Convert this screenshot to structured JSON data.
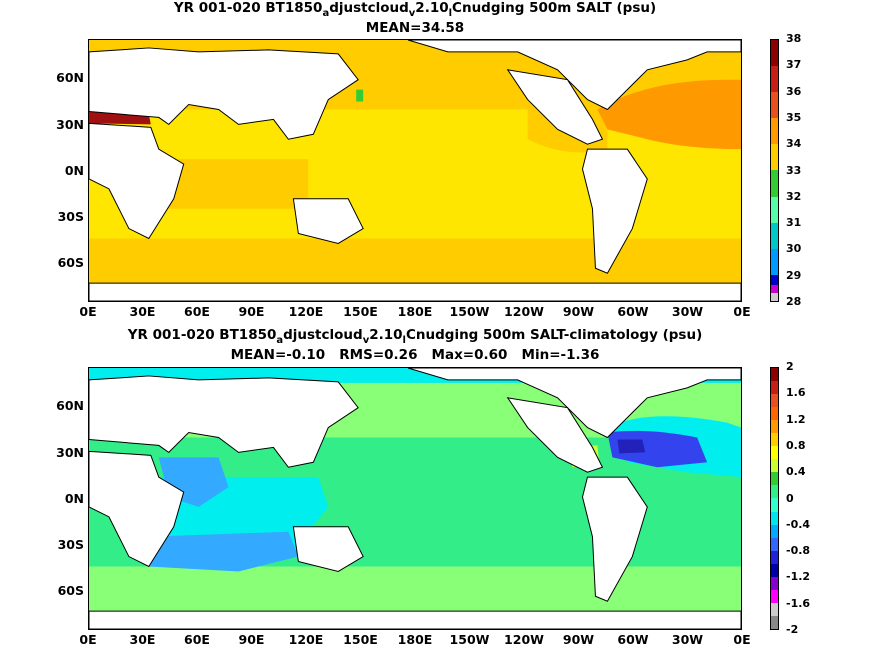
{
  "panels": [
    {
      "title_parts": [
        "YR 001-020 BT1850",
        "a",
        "djustcloud",
        "v",
        "2.10",
        "l",
        "Cnudging 500m SALT (psu)"
      ],
      "subtitle": "MEAN=34.58",
      "colorbar_labels": [
        "38",
        "37",
        "36",
        "35",
        "34",
        "33",
        "32",
        "31",
        "30",
        "29",
        "28"
      ],
      "colorbar_colors": [
        "#8b0000",
        "#c81e14",
        "#e8501e",
        "#ff9900",
        "#ffcc00",
        "#33cc33",
        "#55ffaa",
        "#00c8c8",
        "#0099ff",
        "#0000cc",
        "#cc00cc"
      ],
      "ocean_color": "#ffe600",
      "regions": [
        {
          "name": "atlantic-high",
          "color": "#ff9900"
        },
        {
          "name": "southern-ocean",
          "color": "#ffcc00"
        },
        {
          "name": "mediterranean",
          "color": "#a01010"
        }
      ]
    },
    {
      "title_parts": [
        "YR 001-020 BT1850",
        "a",
        "djustcloud",
        "v",
        "2.10",
        "l",
        "Cnudging 500m SALT-climatology (psu)"
      ],
      "subtitle": "MEAN=-0.10   RMS=0.26   Max=0.60   Min=-1.36",
      "colorbar_labels": [
        "2",
        "1.6",
        "1.2",
        "0.8",
        "0.4",
        "0",
        "-0.4",
        "-0.8",
        "-1.2",
        "-1.6",
        "-2"
      ],
      "colorbar_colors": [
        "#8b0000",
        "#c81e14",
        "#e8501e",
        "#ff9900",
        "#ffcc00",
        "#33cc33",
        "#33ffaa",
        "#00e5ee",
        "#0099ff",
        "#3355ff",
        "#0000cc",
        "#8800cc",
        "#ff00ff",
        "#cccccc"
      ],
      "ocean_color": "#33ee88",
      "regions": [
        {
          "name": "north-atlantic-fresh",
          "color": "#3344ee"
        },
        {
          "name": "indian-fresh",
          "color": "#33aaff"
        },
        {
          "name": "cyan-bands",
          "color": "#00eeee"
        }
      ]
    }
  ],
  "axes": {
    "y_ticks": [
      "60N",
      "30N",
      "0N",
      "30S",
      "60S"
    ],
    "x_ticks": [
      "0E",
      "30E",
      "60E",
      "90E",
      "120E",
      "150E",
      "180E",
      "150W",
      "120W",
      "90W",
      "60W",
      "30W",
      "0E"
    ]
  },
  "chart_data": [
    {
      "type": "heatmap",
      "title": "YR 001-020 BT1850adjustcloudv2.10lCnudging 500m SALT (psu)",
      "subtitle": "MEAN=34.58",
      "xlabel": "",
      "ylabel": "",
      "x_ticks": [
        "0E",
        "30E",
        "60E",
        "90E",
        "120E",
        "150E",
        "180E",
        "150W",
        "120W",
        "90W",
        "60W",
        "30W",
        "0E"
      ],
      "y_ticks": [
        "60N",
        "30N",
        "0N",
        "30S",
        "60S"
      ],
      "colorbar_ticks": [
        38,
        37,
        36,
        35,
        34,
        33,
        32,
        31,
        30,
        29,
        28
      ],
      "zlim": [
        28,
        38
      ],
      "mean": 34.58
    },
    {
      "type": "heatmap",
      "title": "YR 001-020 BT1850adjustcloudv2.10lCnudging 500m SALT-climatology (psu)",
      "subtitle": "MEAN=-0.10   RMS=0.26   Max=0.60   Min=-1.36",
      "xlabel": "",
      "ylabel": "",
      "x_ticks": [
        "0E",
        "30E",
        "60E",
        "90E",
        "120E",
        "150E",
        "180E",
        "150W",
        "120W",
        "90W",
        "60W",
        "30W",
        "0E"
      ],
      "y_ticks": [
        "60N",
        "30N",
        "0N",
        "30S",
        "60S"
      ],
      "colorbar_ticks": [
        2,
        1.6,
        1.2,
        0.8,
        0.4,
        0,
        -0.4,
        -0.8,
        -1.2,
        -1.6,
        -2
      ],
      "zlim": [
        -2,
        2
      ],
      "mean": -0.1,
      "rms": 0.26,
      "max": 0.6,
      "min": -1.36
    }
  ]
}
